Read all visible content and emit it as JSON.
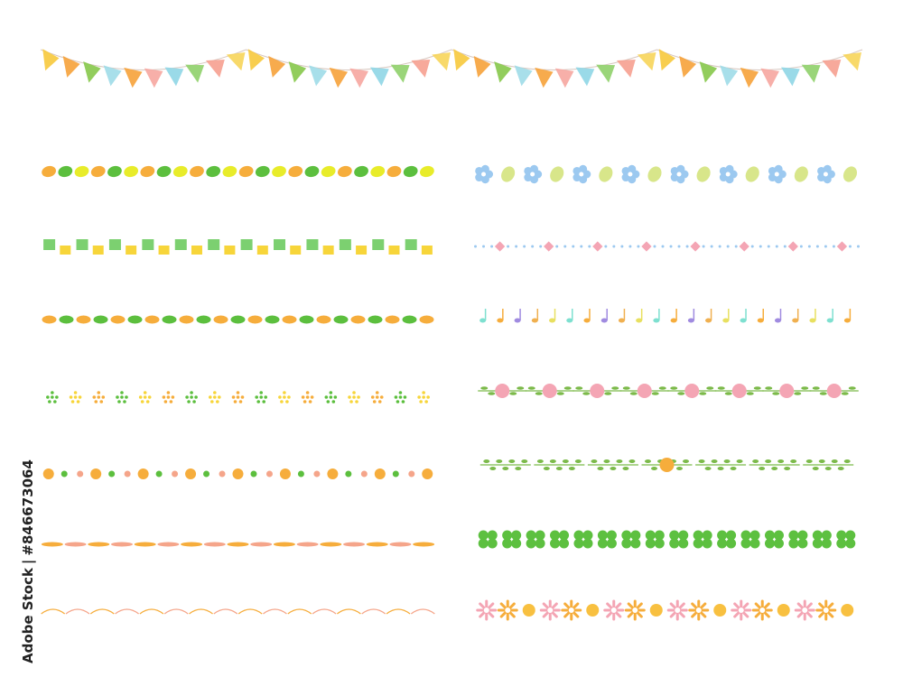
{
  "credit": {
    "source": "Adobe Stock",
    "separator": "|",
    "id": "#846673064"
  },
  "palette": {
    "yellow": "#f7d53a",
    "orange": "#f6ad3c",
    "green": "#5cbf3e",
    "lime": "#e8ec2a",
    "salmon": "#f5a58a",
    "sky": "#8fd6e6",
    "pink": "#f4a5b4",
    "blue": "#9cc9f0",
    "purple": "#a08be0",
    "leaf": "#7cba4a",
    "clover": "#5dc040",
    "line": "#d8c8c0"
  },
  "bunting": {
    "swags": 4,
    "flag_colors": [
      "#f7c93c",
      "#f6a23a",
      "#86c84a",
      "#9fdbe8",
      "#f6a23a",
      "#f6a6a0",
      "#8fd6e6",
      "#8fd06a",
      "#f6a090",
      "#f7d55a"
    ]
  },
  "left_borders": [
    "leaves",
    "squares",
    "ovals",
    "dot-clusters",
    "dots",
    "dashes",
    "scallops"
  ],
  "right_borders": [
    "blue-flowers",
    "dots-diamonds",
    "music-notes",
    "pink-flower-vine",
    "leaf-vine",
    "clovers",
    "daisies"
  ]
}
